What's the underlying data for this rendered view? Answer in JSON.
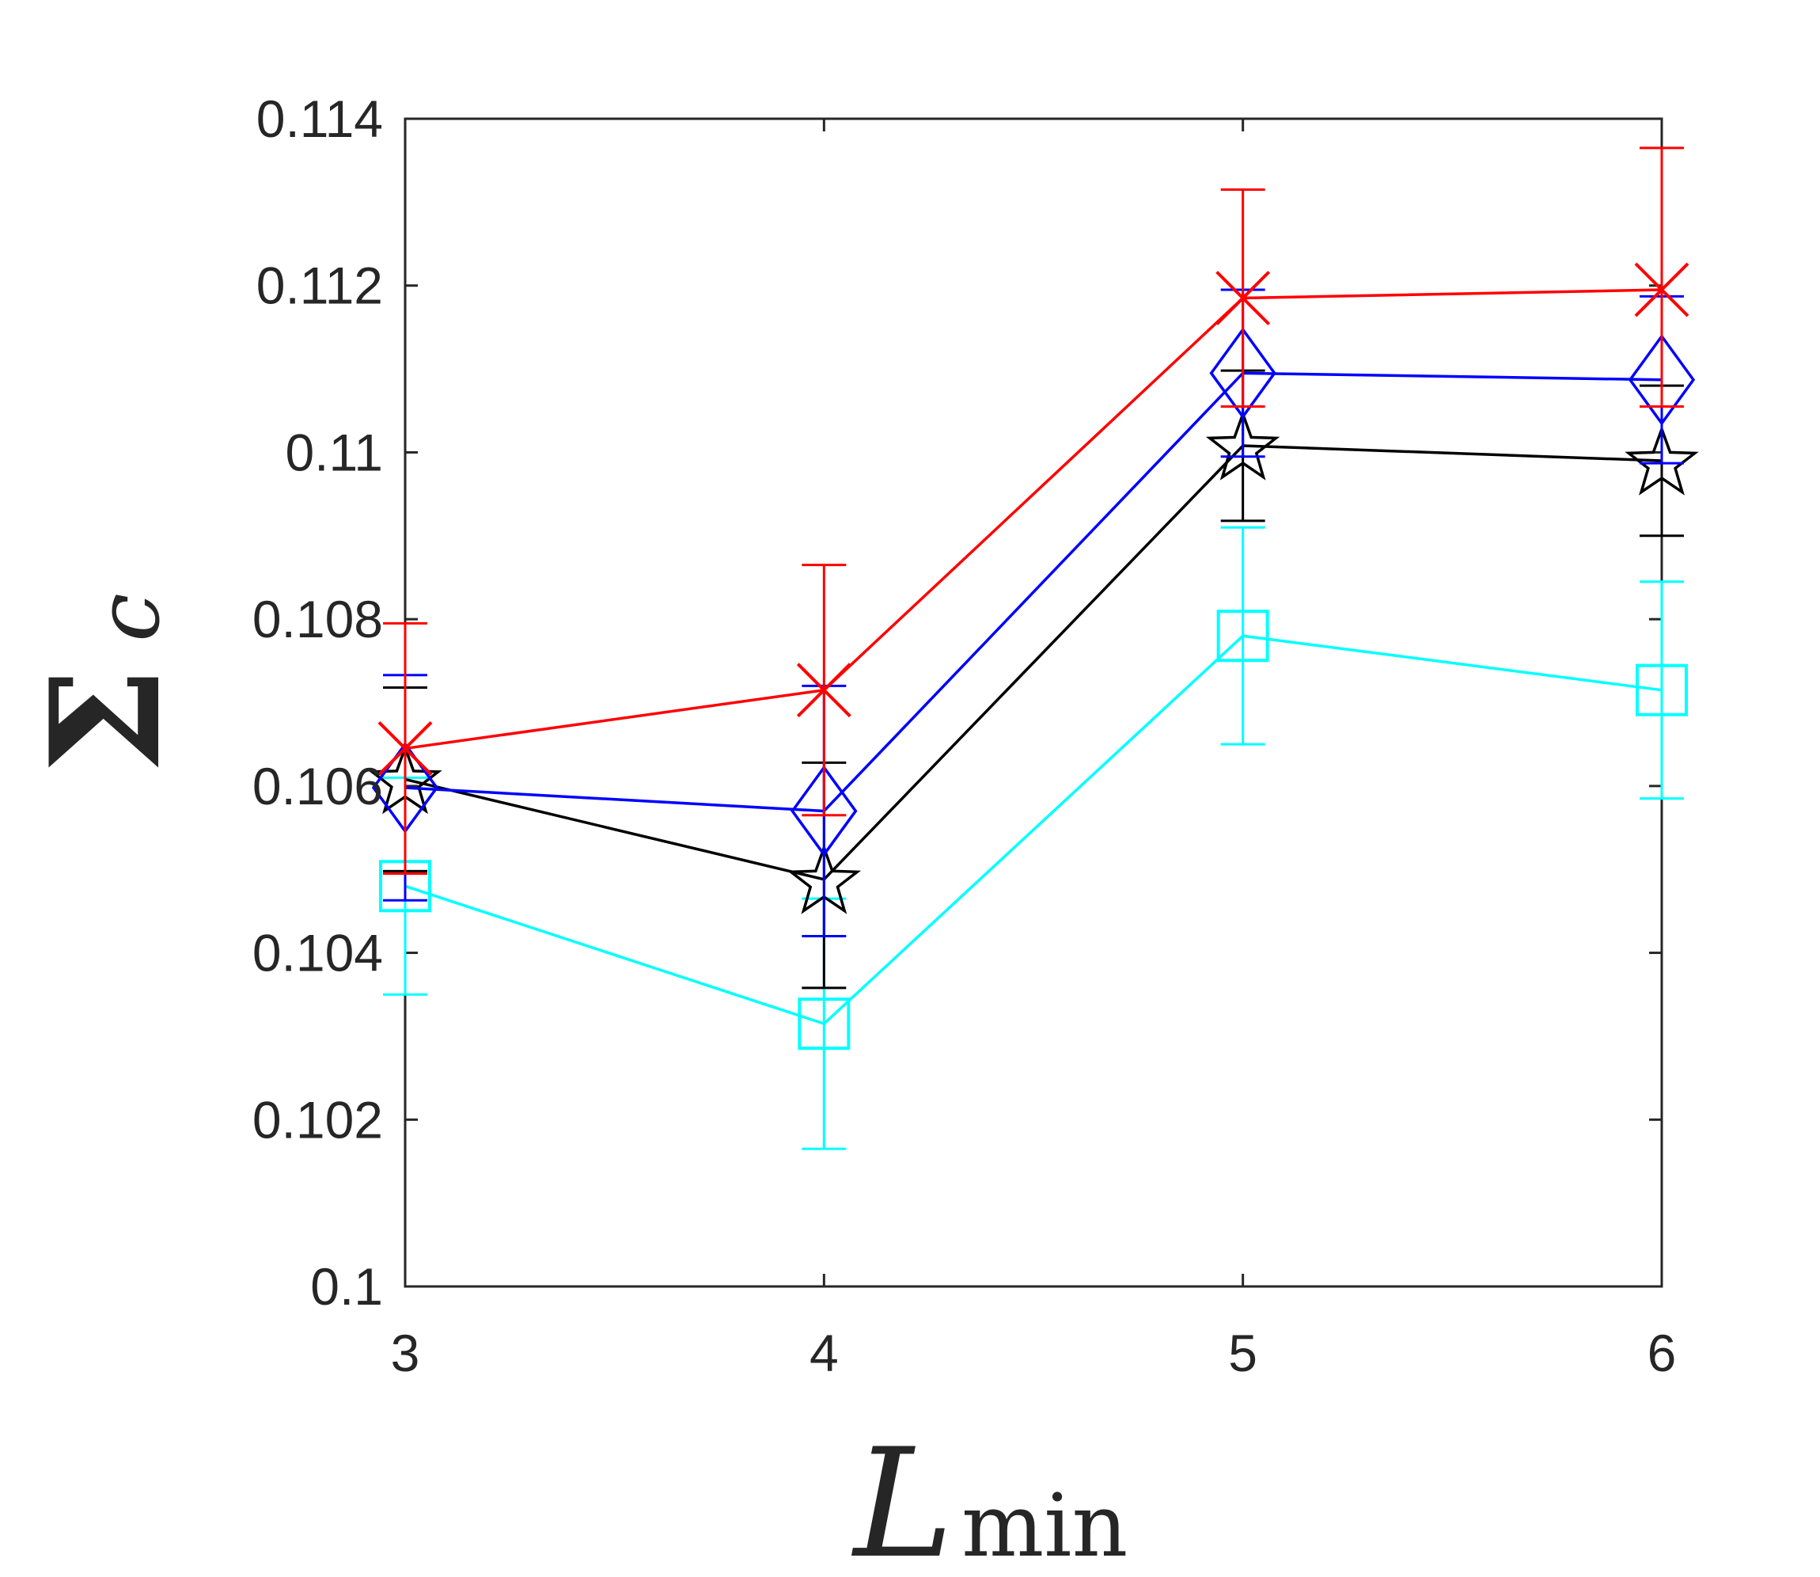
{
  "chart_data": {
    "type": "line",
    "title": "",
    "xlabel": {
      "main": "L",
      "subscript": "min"
    },
    "ylabel": {
      "main": "Σ",
      "subscript": "c"
    },
    "xlim": [
      3,
      6
    ],
    "ylim": [
      0.1,
      0.114
    ],
    "xticks": [
      3,
      4,
      5,
      6
    ],
    "xtick_labels": [
      "3",
      "4",
      "5",
      "6"
    ],
    "yticks": [
      0.1,
      0.102,
      0.104,
      0.106,
      0.108,
      0.11,
      0.112,
      0.114
    ],
    "ytick_labels": [
      "0.1",
      "0.102",
      "0.104",
      "0.106",
      "0.108",
      "0.11",
      "0.112",
      "0.114"
    ],
    "grid": false,
    "x": [
      3,
      4,
      5,
      6
    ],
    "series": [
      {
        "name": "red-x",
        "color": "#ff0000",
        "marker": "x",
        "values": [
          0.10645,
          0.10715,
          0.11185,
          0.11195
        ],
        "err_low": [
          0.0015,
          0.0015,
          0.0013,
          0.0014
        ],
        "err_high": [
          0.0015,
          0.0015,
          0.0013,
          0.0017
        ]
      },
      {
        "name": "blue-diamond",
        "color": "#0000ff",
        "marker": "diamond",
        "values": [
          0.10598,
          0.1057,
          0.11095,
          0.11087
        ],
        "err_low": [
          0.00135,
          0.0015,
          0.001,
          0.001
        ],
        "err_high": [
          0.00135,
          0.0015,
          0.001,
          0.001
        ]
      },
      {
        "name": "black-star",
        "color": "#000000",
        "marker": "star",
        "values": [
          0.10608,
          0.10488,
          0.11008,
          0.1099
        ],
        "err_low": [
          0.0011,
          0.0013,
          0.0009,
          0.0009
        ],
        "err_high": [
          0.0011,
          0.0014,
          0.0009,
          0.0009
        ]
      },
      {
        "name": "cyan-square",
        "color": "#00ffff",
        "marker": "square",
        "values": [
          0.1048,
          0.10315,
          0.1078,
          0.10715
        ],
        "err_low": [
          0.0013,
          0.0015,
          0.0013,
          0.0013
        ],
        "err_high": [
          0.0013,
          0.0015,
          0.0013,
          0.0013
        ]
      }
    ]
  }
}
